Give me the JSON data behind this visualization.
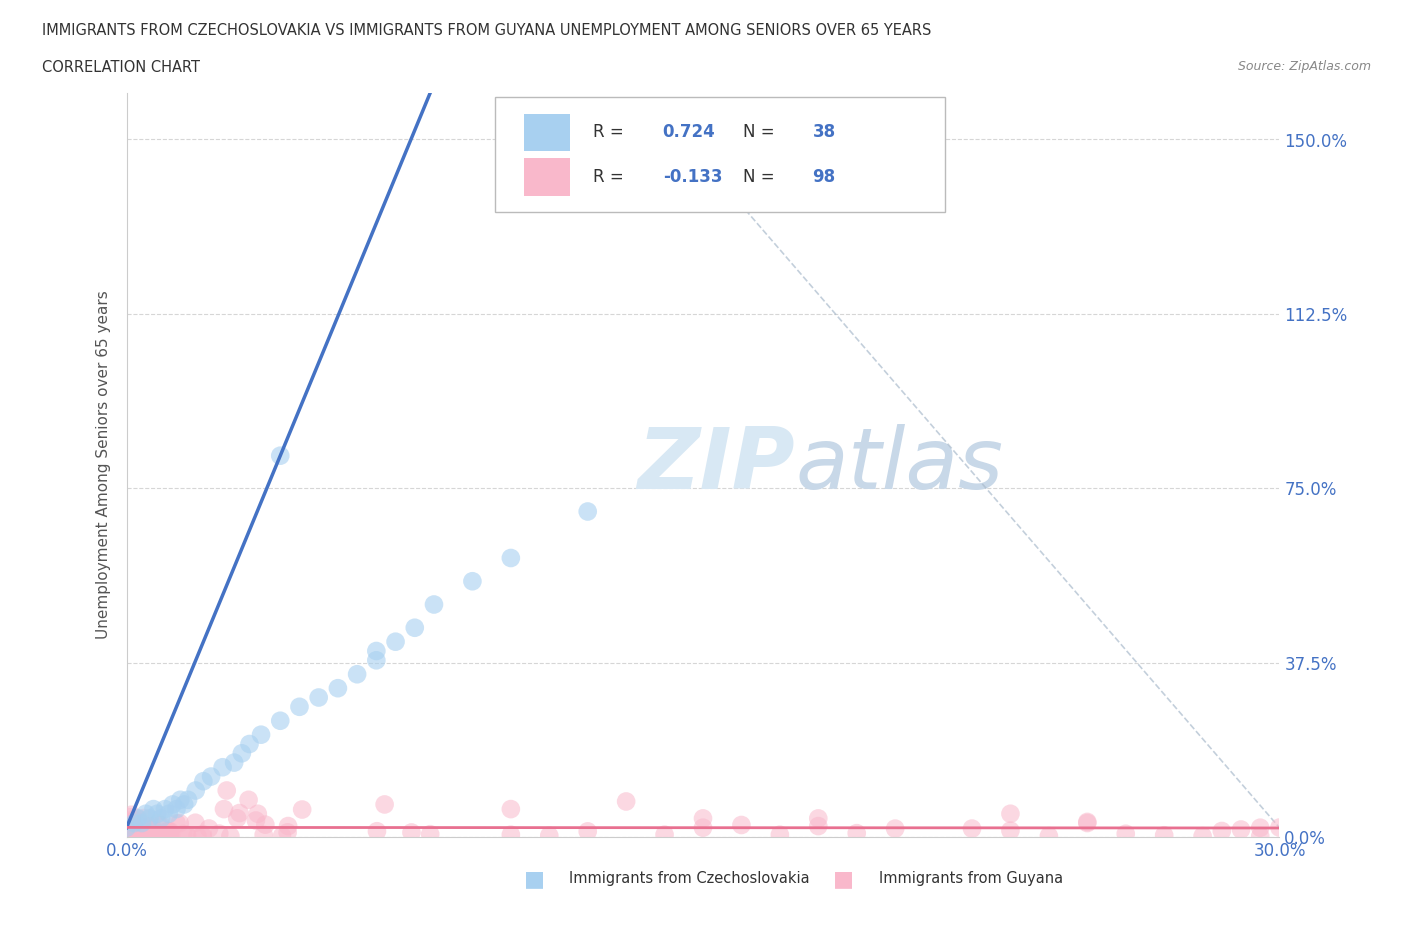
{
  "title_line1": "IMMIGRANTS FROM CZECHOSLOVAKIA VS IMMIGRANTS FROM GUYANA UNEMPLOYMENT AMONG SENIORS OVER 65 YEARS",
  "title_line2": "CORRELATION CHART",
  "source": "Source: ZipAtlas.com",
  "ylabel": "Unemployment Among Seniors over 65 years",
  "xlim": [
    0.0,
    0.3
  ],
  "ylim": [
    0.0,
    1.6
  ],
  "yticks": [
    0.0,
    0.375,
    0.75,
    1.125,
    1.5
  ],
  "ytick_labels": [
    "0.0%",
    "37.5%",
    "75.0%",
    "112.5%",
    "150.0%"
  ],
  "xtick_labels": [
    "0.0%",
    "30.0%"
  ],
  "color_czech": "#A8D0F0",
  "color_guyana": "#F9B8CB",
  "trend_color_czech": "#4472C4",
  "trend_color_guyana": "#E87090",
  "R_czech": 0.724,
  "N_czech": 38,
  "R_guyana": -0.133,
  "N_guyana": 98,
  "background_color": "#FFFFFF",
  "grid_color": "#CCCCCC",
  "title_color": "#333333",
  "legend_N_color": "#4472C4",
  "watermark_color": "#D8E8F4"
}
